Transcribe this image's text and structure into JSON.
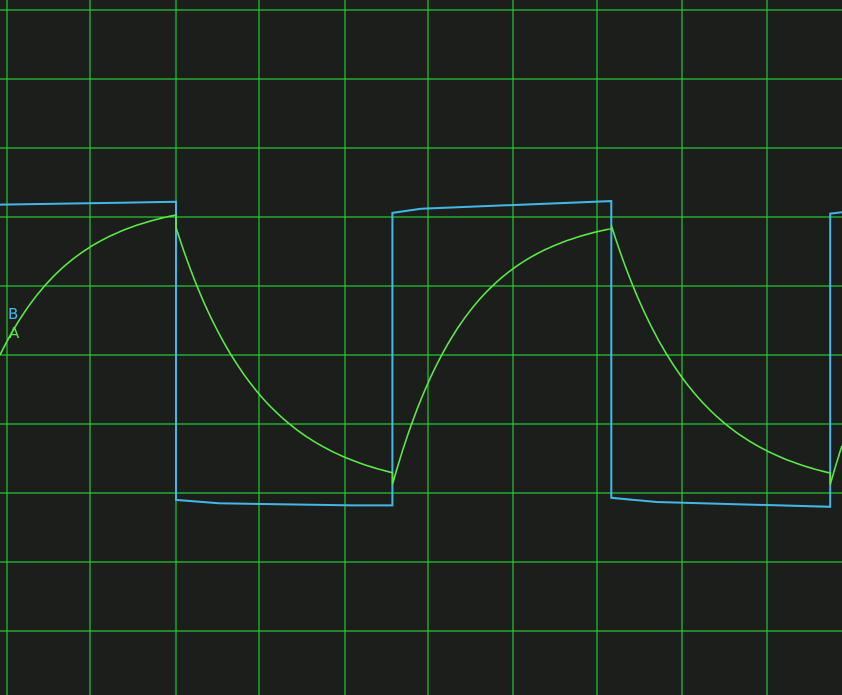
{
  "chart_data": {
    "type": "line",
    "title": "",
    "xlabel": "",
    "ylabel": "",
    "grid": true,
    "background_color": "#1c1e1c",
    "grid_color": "#22c832",
    "x_divisions": 10,
    "y_divisions": 10,
    "xlim": [
      0,
      10
    ],
    "ylim": [
      0,
      10
    ],
    "channel_labels": [
      {
        "text": "B",
        "color": "#43b8e6"
      },
      {
        "text": "A",
        "color": "#5de84a"
      }
    ],
    "series": [
      {
        "name": "B",
        "color": "#43b8e6",
        "points": [
          [
            0.0,
            7.18
          ],
          [
            2.09,
            7.22
          ],
          [
            2.09,
            2.9
          ],
          [
            2.6,
            2.85
          ],
          [
            4.2,
            2.82
          ],
          [
            4.66,
            2.82
          ],
          [
            4.66,
            7.06
          ],
          [
            5.0,
            7.12
          ],
          [
            7.26,
            7.23
          ],
          [
            7.26,
            2.93
          ],
          [
            7.8,
            2.87
          ],
          [
            9.86,
            2.8
          ],
          [
            9.86,
            7.05
          ],
          [
            10.0,
            7.07
          ]
        ]
      },
      {
        "name": "A",
        "color": "#5de84a",
        "segments": [
          {
            "type": "rise",
            "x0": 0.0,
            "x1": 2.09,
            "y_start": 5.0,
            "y_target": 7.25,
            "tau": 0.9
          },
          {
            "type": "decay",
            "x0": 2.09,
            "x1": 4.66,
            "y_start": 6.85,
            "y_target": 3.0,
            "tau": 1.0
          },
          {
            "type": "rise",
            "x0": 4.66,
            "x1": 7.26,
            "y_start": 3.12,
            "y_target": 7.05,
            "tau": 0.9
          },
          {
            "type": "decay",
            "x0": 7.26,
            "x1": 9.86,
            "y_start": 6.88,
            "y_target": 3.0,
            "tau": 1.0
          },
          {
            "type": "rise",
            "x0": 9.86,
            "x1": 10.0,
            "y_start": 3.12,
            "y_target": 7.05,
            "tau": 0.9
          }
        ]
      }
    ]
  }
}
